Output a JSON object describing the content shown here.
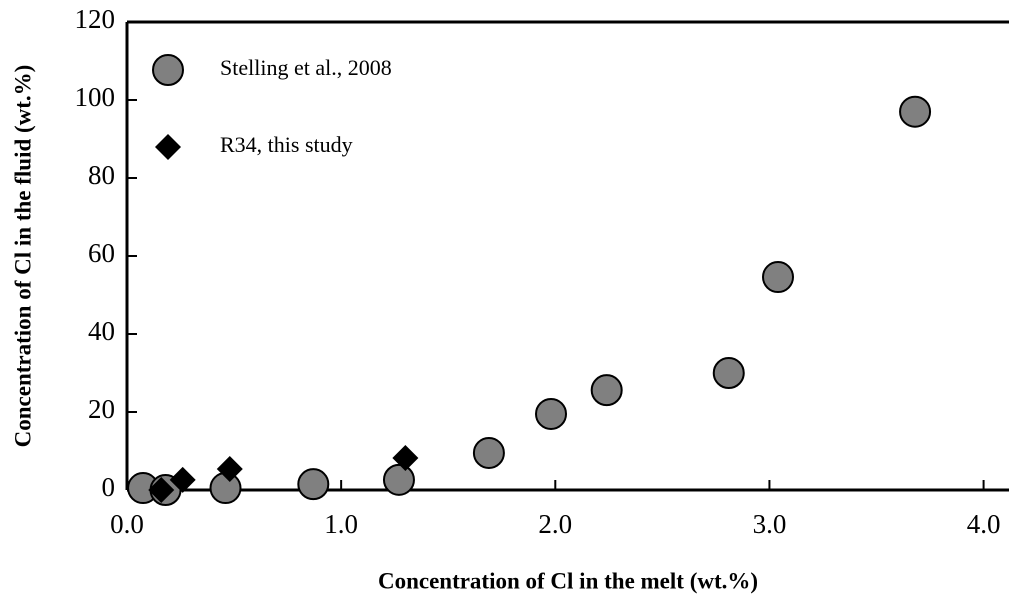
{
  "chart_data": {
    "type": "scatter",
    "xlabel": "Concentration of Cl in the melt (wt.%)",
    "ylabel": "Concentration of Cl in the fluid (wt.%)",
    "xlim": [
      0,
      4.1
    ],
    "ylim": [
      0,
      120
    ],
    "xticks": [
      {
        "value": 0,
        "label": "0.0"
      },
      {
        "value": 1,
        "label": "1.0"
      },
      {
        "value": 2,
        "label": "2.0"
      },
      {
        "value": 3,
        "label": "3.0"
      },
      {
        "value": 4,
        "label": "4.0"
      }
    ],
    "yticks": [
      0,
      20,
      40,
      60,
      80,
      100,
      120
    ],
    "legend": "upper left",
    "series": [
      {
        "name": "Stelling et al., 2008",
        "color": "#808080",
        "marker": "circle",
        "x": [
          0.075,
          0.18,
          0.46,
          0.87,
          1.27,
          1.69,
          1.98,
          2.24,
          2.81,
          3.04,
          3.68
        ],
        "values": [
          0.5,
          0,
          0.5,
          1.5,
          2.6,
          9.5,
          19.5,
          25.6,
          30,
          54.6,
          97
        ]
      },
      {
        "name": "R34, this study",
        "color": "#000000",
        "marker": "diamond",
        "x": [
          0.16,
          0.26,
          0.48,
          1.3
        ],
        "values": [
          0,
          2.6,
          5.4,
          8.2
        ]
      }
    ]
  }
}
